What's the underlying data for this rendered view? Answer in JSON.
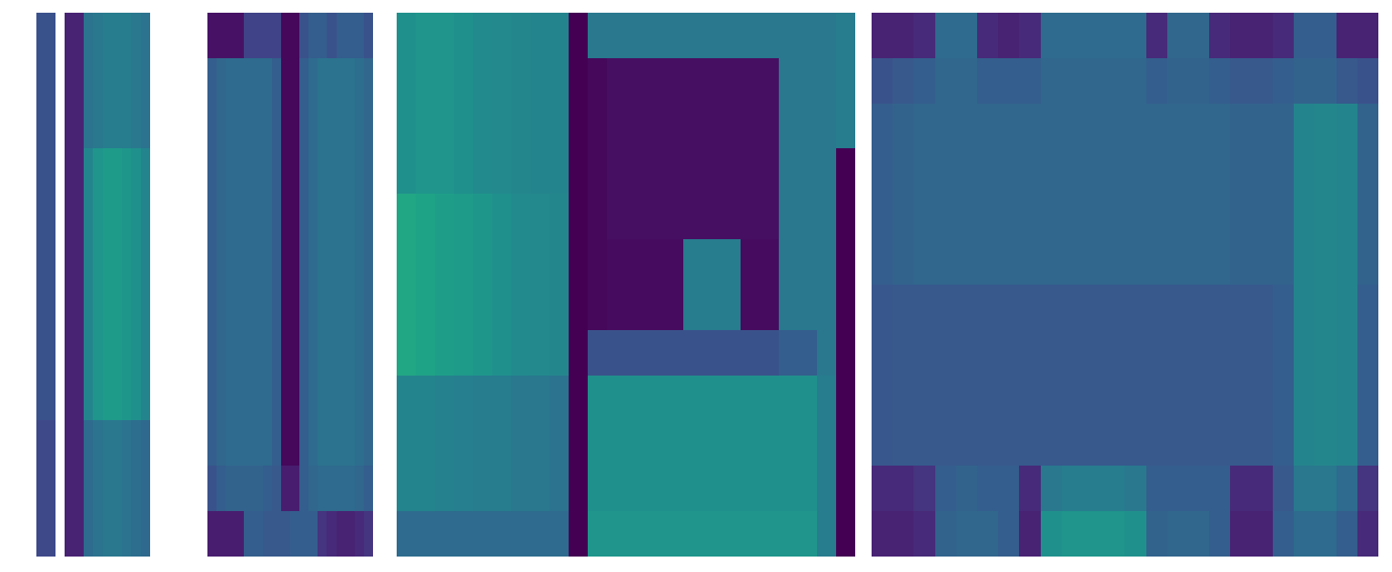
{
  "chart_data": [
    {
      "type": "heatmap",
      "tick_labels": false,
      "color_range": [
        0,
        1
      ],
      "cells": [
        [
          0.25,
          0.25,
          null,
          0.1,
          0.1,
          0.38,
          0.4,
          0.42,
          0.42,
          0.42,
          0.4,
          0.38
        ],
        [
          0.25,
          0.25,
          null,
          0.1,
          0.1,
          0.38,
          0.4,
          0.42,
          0.42,
          0.42,
          0.4,
          0.38
        ],
        [
          0.25,
          0.25,
          null,
          0.1,
          0.1,
          0.38,
          0.4,
          0.42,
          0.42,
          0.42,
          0.4,
          0.38
        ],
        [
          0.25,
          0.25,
          null,
          0.1,
          0.1,
          0.45,
          0.52,
          0.55,
          0.55,
          0.53,
          0.5,
          0.45
        ],
        [
          0.25,
          0.25,
          null,
          0.1,
          0.1,
          0.45,
          0.52,
          0.55,
          0.55,
          0.53,
          0.5,
          0.45
        ],
        [
          0.25,
          0.25,
          null,
          0.1,
          0.1,
          0.45,
          0.52,
          0.55,
          0.55,
          0.53,
          0.5,
          0.45
        ],
        [
          0.25,
          0.25,
          null,
          0.1,
          0.1,
          0.45,
          0.52,
          0.55,
          0.55,
          0.53,
          0.5,
          0.45
        ],
        [
          0.25,
          0.25,
          null,
          0.1,
          0.1,
          0.45,
          0.52,
          0.55,
          0.55,
          0.53,
          0.5,
          0.45
        ],
        [
          0.25,
          0.25,
          null,
          0.1,
          0.1,
          0.45,
          0.52,
          0.55,
          0.55,
          0.53,
          0.5,
          0.45
        ],
        [
          0.22,
          0.22,
          null,
          0.1,
          0.1,
          0.35,
          0.38,
          0.4,
          0.4,
          0.38,
          0.36,
          0.34
        ],
        [
          0.22,
          0.22,
          null,
          0.1,
          0.1,
          0.35,
          0.38,
          0.4,
          0.4,
          0.38,
          0.36,
          0.34
        ],
        [
          0.22,
          0.22,
          null,
          0.1,
          0.1,
          0.35,
          0.38,
          0.4,
          0.4,
          0.38,
          0.36,
          0.34
        ]
      ]
    },
    {
      "type": "heatmap",
      "tick_labels": false,
      "color_range": [
        0,
        1
      ],
      "cells": [
        [
          0.05,
          0.05,
          0.05,
          0.05,
          0.2,
          0.2,
          0.2,
          0.2,
          0.02,
          0.02,
          0.25,
          0.3,
          0.3,
          0.25,
          0.3,
          0.3,
          0.3,
          0.25
        ],
        [
          0.3,
          0.33,
          0.35,
          0.35,
          0.35,
          0.35,
          0.35,
          0.3,
          0.02,
          0.02,
          0.3,
          0.35,
          0.38,
          0.38,
          0.38,
          0.38,
          0.36,
          0.33
        ],
        [
          0.3,
          0.33,
          0.35,
          0.35,
          0.35,
          0.35,
          0.35,
          0.3,
          0.02,
          0.02,
          0.3,
          0.35,
          0.38,
          0.38,
          0.38,
          0.38,
          0.36,
          0.33
        ],
        [
          0.3,
          0.33,
          0.35,
          0.35,
          0.35,
          0.35,
          0.35,
          0.3,
          0.02,
          0.02,
          0.3,
          0.35,
          0.38,
          0.38,
          0.38,
          0.38,
          0.36,
          0.33
        ],
        [
          0.3,
          0.33,
          0.35,
          0.35,
          0.35,
          0.35,
          0.35,
          0.3,
          0.02,
          0.02,
          0.3,
          0.35,
          0.38,
          0.38,
          0.38,
          0.38,
          0.36,
          0.33
        ],
        [
          0.3,
          0.33,
          0.35,
          0.35,
          0.35,
          0.35,
          0.35,
          0.3,
          0.02,
          0.02,
          0.3,
          0.35,
          0.38,
          0.38,
          0.38,
          0.38,
          0.36,
          0.33
        ],
        [
          0.3,
          0.33,
          0.35,
          0.35,
          0.35,
          0.35,
          0.35,
          0.3,
          0.02,
          0.02,
          0.3,
          0.35,
          0.38,
          0.38,
          0.38,
          0.38,
          0.36,
          0.33
        ],
        [
          0.3,
          0.33,
          0.35,
          0.35,
          0.35,
          0.35,
          0.35,
          0.3,
          0.02,
          0.02,
          0.3,
          0.35,
          0.38,
          0.38,
          0.38,
          0.38,
          0.36,
          0.33
        ],
        [
          0.3,
          0.33,
          0.35,
          0.35,
          0.35,
          0.35,
          0.35,
          0.3,
          0.02,
          0.02,
          0.3,
          0.35,
          0.38,
          0.38,
          0.38,
          0.38,
          0.36,
          0.33
        ],
        [
          0.3,
          0.33,
          0.35,
          0.35,
          0.35,
          0.35,
          0.35,
          0.3,
          0.02,
          0.02,
          0.3,
          0.35,
          0.38,
          0.38,
          0.38,
          0.38,
          0.36,
          0.33
        ],
        [
          0.25,
          0.3,
          0.32,
          0.32,
          0.32,
          0.32,
          0.3,
          0.28,
          0.08,
          0.08,
          0.3,
          0.33,
          0.35,
          0.35,
          0.35,
          0.35,
          0.33,
          0.3
        ],
        [
          0.08,
          0.08,
          0.08,
          0.08,
          0.3,
          0.3,
          0.28,
          0.28,
          0.28,
          0.3,
          0.3,
          0.3,
          0.15,
          0.12,
          0.1,
          0.1,
          0.12,
          0.15
        ]
      ]
    },
    {
      "type": "heatmap",
      "tick_labels": false,
      "color_range": [
        0,
        1
      ],
      "cells": [
        [
          0.5,
          0.52,
          0.52,
          0.5,
          0.48,
          0.47,
          0.46,
          0.45,
          0.45,
          0.0,
          0.4,
          0.4,
          0.4,
          0.4,
          0.4,
          0.4,
          0.4,
          0.4,
          0.4,
          0.4,
          0.4,
          0.4,
          0.4,
          0.42
        ],
        [
          0.5,
          0.52,
          0.52,
          0.5,
          0.48,
          0.47,
          0.46,
          0.45,
          0.45,
          0.0,
          0.02,
          0.04,
          0.04,
          0.04,
          0.04,
          0.04,
          0.04,
          0.04,
          0.04,
          0.04,
          0.4,
          0.4,
          0.4,
          0.42
        ],
        [
          0.5,
          0.52,
          0.52,
          0.5,
          0.48,
          0.47,
          0.46,
          0.45,
          0.45,
          0.0,
          0.02,
          0.04,
          0.04,
          0.04,
          0.04,
          0.04,
          0.04,
          0.04,
          0.04,
          0.04,
          0.4,
          0.4,
          0.4,
          0.42
        ],
        [
          0.5,
          0.52,
          0.52,
          0.5,
          0.48,
          0.47,
          0.46,
          0.45,
          0.45,
          0.0,
          0.02,
          0.04,
          0.04,
          0.04,
          0.04,
          0.04,
          0.04,
          0.04,
          0.04,
          0.04,
          0.4,
          0.4,
          0.4,
          0.0
        ],
        [
          0.6,
          0.58,
          0.56,
          0.55,
          0.53,
          0.5,
          0.48,
          0.47,
          0.46,
          0.0,
          0.02,
          0.04,
          0.04,
          0.04,
          0.04,
          0.04,
          0.04,
          0.04,
          0.04,
          0.04,
          0.4,
          0.4,
          0.4,
          0.0
        ],
        [
          0.6,
          0.58,
          0.56,
          0.55,
          0.53,
          0.5,
          0.48,
          0.47,
          0.46,
          0.0,
          0.02,
          0.03,
          0.03,
          0.03,
          0.03,
          0.42,
          0.42,
          0.42,
          0.03,
          0.03,
          0.4,
          0.4,
          0.4,
          0.0
        ],
        [
          0.6,
          0.58,
          0.56,
          0.55,
          0.53,
          0.5,
          0.48,
          0.47,
          0.46,
          0.0,
          0.02,
          0.03,
          0.03,
          0.03,
          0.03,
          0.42,
          0.42,
          0.42,
          0.03,
          0.03,
          0.4,
          0.4,
          0.4,
          0.0
        ],
        [
          0.6,
          0.58,
          0.56,
          0.55,
          0.53,
          0.5,
          0.48,
          0.47,
          0.46,
          0.0,
          0.25,
          0.25,
          0.25,
          0.25,
          0.25,
          0.25,
          0.25,
          0.25,
          0.25,
          0.25,
          0.3,
          0.3,
          0.4,
          0.0
        ],
        [
          0.45,
          0.45,
          0.44,
          0.43,
          0.42,
          0.42,
          0.4,
          0.4,
          0.38,
          0.0,
          0.5,
          0.5,
          0.5,
          0.5,
          0.5,
          0.5,
          0.5,
          0.5,
          0.5,
          0.5,
          0.5,
          0.5,
          0.42,
          0.0
        ],
        [
          0.45,
          0.45,
          0.44,
          0.43,
          0.42,
          0.42,
          0.4,
          0.4,
          0.38,
          0.0,
          0.5,
          0.5,
          0.5,
          0.5,
          0.5,
          0.5,
          0.5,
          0.5,
          0.5,
          0.5,
          0.5,
          0.5,
          0.42,
          0.0
        ],
        [
          0.45,
          0.45,
          0.44,
          0.43,
          0.42,
          0.42,
          0.4,
          0.4,
          0.38,
          0.0,
          0.5,
          0.5,
          0.5,
          0.5,
          0.5,
          0.5,
          0.5,
          0.5,
          0.5,
          0.5,
          0.5,
          0.5,
          0.42,
          0.0
        ],
        [
          0.35,
          0.35,
          0.35,
          0.35,
          0.35,
          0.35,
          0.35,
          0.35,
          0.35,
          0.0,
          0.52,
          0.52,
          0.52,
          0.52,
          0.52,
          0.52,
          0.52,
          0.52,
          0.52,
          0.52,
          0.52,
          0.52,
          0.42,
          0.0
        ]
      ]
    },
    {
      "type": "heatmap",
      "tick_labels": false,
      "color_range": [
        0,
        1
      ],
      "cells": [
        [
          0.1,
          0.1,
          0.12,
          0.35,
          0.35,
          0.12,
          0.1,
          0.12,
          0.35,
          0.35,
          0.35,
          0.35,
          0.35,
          0.12,
          0.33,
          0.33,
          0.12,
          0.1,
          0.1,
          0.12,
          0.3,
          0.3,
          0.1,
          0.1
        ],
        [
          0.25,
          0.28,
          0.3,
          0.33,
          0.33,
          0.3,
          0.3,
          0.3,
          0.33,
          0.33,
          0.33,
          0.33,
          0.33,
          0.3,
          0.32,
          0.32,
          0.3,
          0.28,
          0.28,
          0.3,
          0.32,
          0.32,
          0.28,
          0.25
        ],
        [
          0.3,
          0.32,
          0.33,
          0.33,
          0.33,
          0.33,
          0.33,
          0.33,
          0.33,
          0.33,
          0.33,
          0.33,
          0.33,
          0.33,
          0.33,
          0.33,
          0.33,
          0.32,
          0.32,
          0.32,
          0.45,
          0.46,
          0.45,
          0.32
        ],
        [
          0.3,
          0.32,
          0.33,
          0.33,
          0.33,
          0.33,
          0.33,
          0.33,
          0.33,
          0.33,
          0.33,
          0.33,
          0.33,
          0.33,
          0.33,
          0.33,
          0.33,
          0.32,
          0.32,
          0.32,
          0.45,
          0.46,
          0.45,
          0.32
        ],
        [
          0.3,
          0.32,
          0.33,
          0.33,
          0.33,
          0.33,
          0.33,
          0.33,
          0.33,
          0.33,
          0.33,
          0.33,
          0.33,
          0.33,
          0.33,
          0.33,
          0.33,
          0.32,
          0.32,
          0.32,
          0.45,
          0.46,
          0.45,
          0.32
        ],
        [
          0.3,
          0.32,
          0.33,
          0.33,
          0.33,
          0.33,
          0.33,
          0.33,
          0.33,
          0.33,
          0.33,
          0.33,
          0.33,
          0.33,
          0.33,
          0.33,
          0.33,
          0.32,
          0.32,
          0.32,
          0.45,
          0.46,
          0.45,
          0.32
        ],
        [
          0.27,
          0.28,
          0.28,
          0.28,
          0.28,
          0.28,
          0.28,
          0.28,
          0.28,
          0.28,
          0.28,
          0.28,
          0.28,
          0.28,
          0.28,
          0.28,
          0.28,
          0.28,
          0.28,
          0.3,
          0.45,
          0.46,
          0.45,
          0.3
        ],
        [
          0.27,
          0.28,
          0.28,
          0.28,
          0.28,
          0.28,
          0.28,
          0.28,
          0.28,
          0.28,
          0.28,
          0.28,
          0.28,
          0.28,
          0.28,
          0.28,
          0.28,
          0.28,
          0.28,
          0.3,
          0.45,
          0.46,
          0.45,
          0.3
        ],
        [
          0.27,
          0.28,
          0.28,
          0.28,
          0.28,
          0.28,
          0.28,
          0.28,
          0.28,
          0.28,
          0.28,
          0.28,
          0.28,
          0.28,
          0.28,
          0.28,
          0.28,
          0.28,
          0.28,
          0.3,
          0.45,
          0.46,
          0.45,
          0.3
        ],
        [
          0.27,
          0.28,
          0.28,
          0.28,
          0.28,
          0.28,
          0.28,
          0.28,
          0.28,
          0.28,
          0.28,
          0.28,
          0.28,
          0.28,
          0.28,
          0.28,
          0.28,
          0.28,
          0.28,
          0.3,
          0.45,
          0.46,
          0.45,
          0.3
        ],
        [
          0.12,
          0.12,
          0.15,
          0.3,
          0.32,
          0.3,
          0.3,
          0.12,
          0.4,
          0.42,
          0.42,
          0.42,
          0.4,
          0.3,
          0.3,
          0.3,
          0.3,
          0.12,
          0.12,
          0.28,
          0.4,
          0.4,
          0.35,
          0.15
        ],
        [
          0.1,
          0.1,
          0.12,
          0.32,
          0.33,
          0.33,
          0.3,
          0.1,
          0.5,
          0.52,
          0.52,
          0.52,
          0.5,
          0.32,
          0.33,
          0.33,
          0.3,
          0.1,
          0.1,
          0.3,
          0.35,
          0.35,
          0.3,
          0.12
        ]
      ]
    }
  ]
}
